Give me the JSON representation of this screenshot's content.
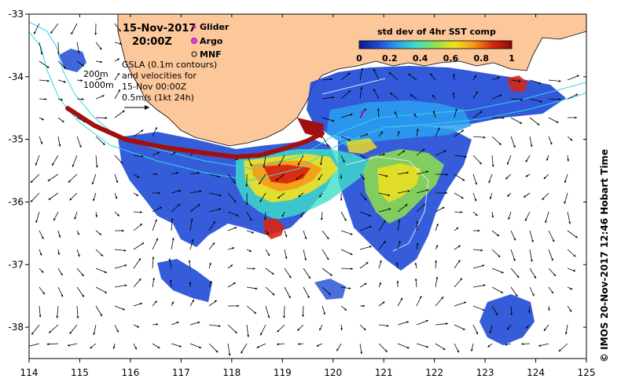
{
  "datetime": {
    "date": "15-Nov-2017",
    "time": "20:00Z"
  },
  "legend": {
    "glider": "Glider",
    "argo": "Argo",
    "mnf": "MNF",
    "contour_200": "200m",
    "contour_1000": "1000m",
    "gsla_lines": [
      "GSLA (0.1m contours)",
      "and velocities for",
      "15-Nov 00:00Z",
      "0.5m/s (1kt 24h)"
    ]
  },
  "colorbar": {
    "title": "std dev of 4hr SST comp",
    "ticks": [
      "0",
      "0.2",
      "0.4",
      "0.6",
      "0.8",
      "1"
    ],
    "colors": [
      "#0a1a8c",
      "#1f4bd6",
      "#2aa0f0",
      "#3fe0c8",
      "#8ee04a",
      "#f2e020",
      "#f59a18",
      "#d8260e",
      "#8c0a0a"
    ]
  },
  "map": {
    "land_color": "#fcc79b",
    "contour_color": "#33d6e6",
    "glider_track_color": "#a01010",
    "x_axis": {
      "min": 114,
      "max": 125,
      "ticks": [
        "114",
        "115",
        "116",
        "117",
        "118",
        "119",
        "120",
        "121",
        "122",
        "123",
        "124",
        "125"
      ]
    },
    "y_axis": {
      "min": -38.5,
      "max": -33,
      "ticks": [
        "-33",
        "-34",
        "-35",
        "-36",
        "-37",
        "-38"
      ]
    }
  },
  "credit": "© IMOS 20-Nov-2017 12:46 Hobart Time"
}
